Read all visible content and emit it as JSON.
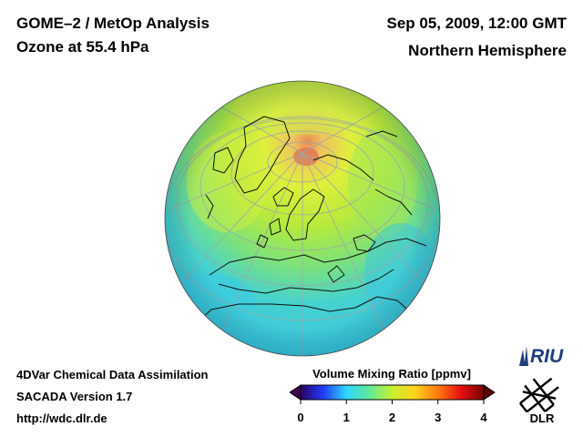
{
  "header": {
    "left_line1": "GOME–2 / MetOp Analysis",
    "left_line2": "Ozone at 55.4 hPa",
    "right_line1": "Sep 05, 2009, 12:00 GMT",
    "right_line2": "Northern Hemisphere"
  },
  "footer": {
    "line1": "4DVar Chemical Data Assimilation",
    "line2": "SACADA Version 1.7",
    "line3": "http://wdc.dlr.de"
  },
  "colorbar": {
    "title": "Volume Mixing Ratio [ppmv]",
    "min": 0,
    "max": 4,
    "ticks": [
      "0",
      "1",
      "2",
      "3",
      "4"
    ],
    "colors": [
      "#2a0060",
      "#1f3cff",
      "#2fd6ff",
      "#5fe89a",
      "#c8f030",
      "#ffd21e",
      "#ff7a10",
      "#e61010",
      "#7a0000"
    ]
  },
  "logos": {
    "riu": "RIU",
    "dlr": "DLR"
  },
  "map": {
    "projection": "orthographic",
    "hemisphere": "Northern Hemisphere",
    "field_colors": {
      "ocean_low": "#3fd0e6",
      "mid": "#8ee86a",
      "high": "#d8f23a",
      "max": "#f3c060",
      "peak": "#e07a5a"
    }
  }
}
